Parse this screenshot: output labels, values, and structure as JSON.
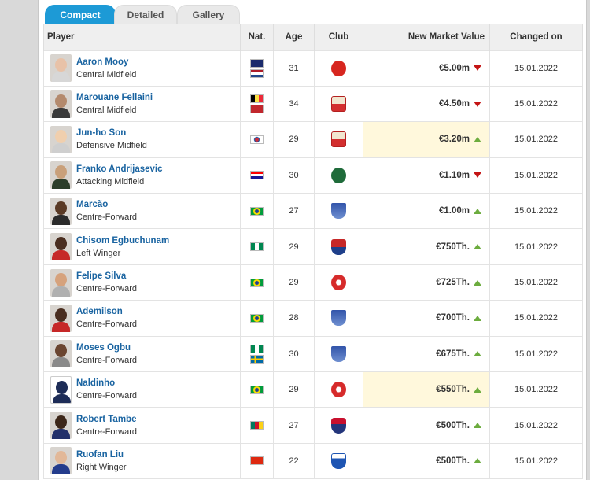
{
  "tabs": [
    {
      "label": "Compact",
      "active": true
    },
    {
      "label": "Detailed",
      "active": false
    },
    {
      "label": "Gallery",
      "active": false
    }
  ],
  "columns": {
    "player": "Player",
    "nat": "Nat.",
    "age": "Age",
    "club": "Club",
    "market_value": "New Market Value",
    "changed": "Changed on"
  },
  "colors": {
    "accent": "#1d9ad6",
    "link": "#1a64a1",
    "down": "#c41414",
    "up": "#6cac3e",
    "highlight": "#fff8dc"
  },
  "players": [
    {
      "name": "Aaron Mooy",
      "position": "Central Midfield",
      "flags": [
        "australia-flag",
        "netherlands-flag"
      ],
      "age": "31",
      "club_icon": "shanghai-port-crest",
      "value": "€5.00m",
      "trend": "down",
      "changed": "15.01.2022",
      "highlight": false
    },
    {
      "name": "Marouane Fellaini",
      "position": "Central Midfield",
      "flags": [
        "belgium-flag",
        "morocco-flag"
      ],
      "age": "34",
      "club_icon": "shandong-taishan-crest",
      "value": "€4.50m",
      "trend": "down",
      "changed": "15.01.2022",
      "highlight": false
    },
    {
      "name": "Jun-ho Son",
      "position": "Defensive Midfield",
      "flags": [
        "korea-flag"
      ],
      "age": "29",
      "club_icon": "shandong-taishan-crest",
      "value": "€3.20m",
      "trend": "up",
      "changed": "15.01.2022",
      "highlight": true
    },
    {
      "name": "Franko Andrijasevic",
      "position": "Attacking Midfield",
      "flags": [
        "croatia-flag"
      ],
      "age": "30",
      "club_icon": "zhejiang-crest",
      "value": "€1.10m",
      "trend": "down",
      "changed": "15.01.2022",
      "highlight": false
    },
    {
      "name": "Marcão",
      "position": "Centre-Forward",
      "flags": [
        "brazil-flag"
      ],
      "age": "27",
      "club_icon": "wuhan-crest",
      "value": "€1.00m",
      "trend": "up",
      "changed": "15.01.2022",
      "highlight": false
    },
    {
      "name": "Chisom Egbuchunam",
      "position": "Left Winger",
      "flags": [
        "nigeria-flag"
      ],
      "age": "29",
      "club_icon": "shenzhen-crest",
      "value": "€750Th.",
      "trend": "up",
      "changed": "15.01.2022",
      "highlight": false
    },
    {
      "name": "Felipe Silva",
      "position": "Centre-Forward",
      "flags": [
        "brazil-flag"
      ],
      "age": "29",
      "club_icon": "changchun-crest",
      "value": "€725Th.",
      "trend": "up",
      "changed": "15.01.2022",
      "highlight": false
    },
    {
      "name": "Ademilson",
      "position": "Centre-Forward",
      "flags": [
        "brazil-flag"
      ],
      "age": "28",
      "club_icon": "wuhan-crest",
      "value": "€700Th.",
      "trend": "up",
      "changed": "15.01.2022",
      "highlight": false
    },
    {
      "name": "Moses Ogbu",
      "position": "Centre-Forward",
      "flags": [
        "nigeria-flag",
        "sweden-flag"
      ],
      "age": "30",
      "club_icon": "wuhan-crest",
      "value": "€675Th.",
      "trend": "up",
      "changed": "15.01.2022",
      "highlight": false
    },
    {
      "name": "Naldinho",
      "position": "Centre-Forward",
      "flags": [
        "brazil-flag"
      ],
      "age": "29",
      "club_icon": "changchun-crest",
      "value": "€550Th.",
      "trend": "up",
      "changed": "15.01.2022",
      "highlight": true
    },
    {
      "name": "Robert Tambe",
      "position": "Centre-Forward",
      "flags": [
        "cameroon-flag"
      ],
      "age": "27",
      "club_icon": "tianjin-crest",
      "value": "€500Th.",
      "trend": "up",
      "changed": "15.01.2022",
      "highlight": false
    },
    {
      "name": "Ruofan Liu",
      "position": "Right Winger",
      "flags": [
        "china-flag"
      ],
      "age": "22",
      "club_icon": "shanghai-shenhua-crest",
      "value": "€500Th.",
      "trend": "up",
      "changed": "15.01.2022",
      "highlight": false
    }
  ]
}
